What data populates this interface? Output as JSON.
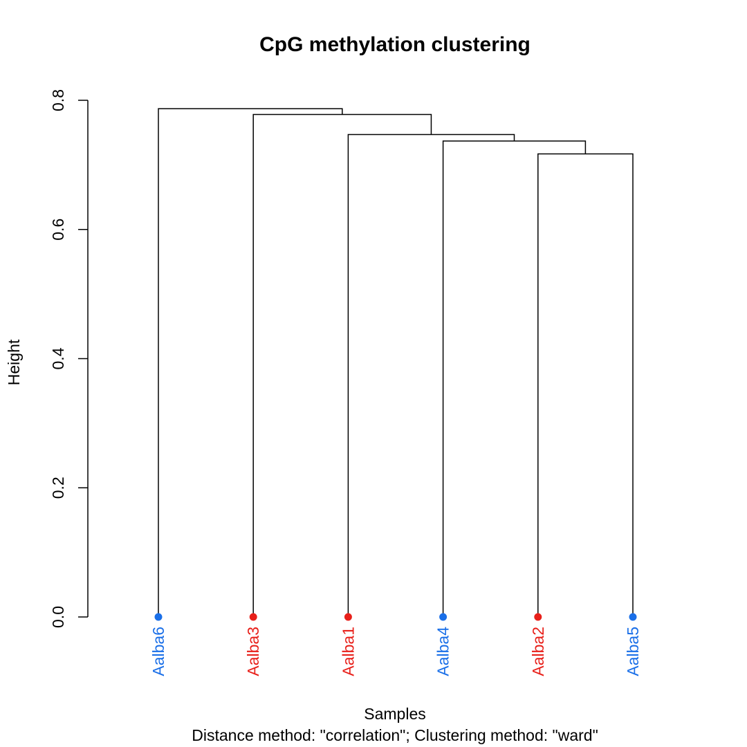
{
  "chart_data": {
    "type": "dendrogram",
    "title": "CpG methylation clustering",
    "xlabel": "Samples",
    "subtitle": "Distance method: \"correlation\"; Clustering method: \"ward\"",
    "ylabel": "Height",
    "ylim": [
      0,
      0.8
    ],
    "yticks": [
      "0.0",
      "0.2",
      "0.4",
      "0.6",
      "0.8"
    ],
    "leaves": [
      {
        "label": "Aalba6",
        "color": "#1a6fe8"
      },
      {
        "label": "Aalba3",
        "color": "#e8201a"
      },
      {
        "label": "Aalba1",
        "color": "#e8201a"
      },
      {
        "label": "Aalba4",
        "color": "#1a6fe8"
      },
      {
        "label": "Aalba2",
        "color": "#e8201a"
      },
      {
        "label": "Aalba5",
        "color": "#1a6fe8"
      }
    ],
    "merges": [
      {
        "left": "Aalba2",
        "right": "Aalba5",
        "height": 0.717
      },
      {
        "left": "Aalba4",
        "right": "merge-1",
        "height": 0.737
      },
      {
        "left": "Aalba1",
        "right": "merge-2",
        "height": 0.747
      },
      {
        "left": "Aalba3",
        "right": "merge-3",
        "height": 0.778
      },
      {
        "left": "Aalba6",
        "right": "merge-4",
        "height": 0.787
      }
    ]
  }
}
